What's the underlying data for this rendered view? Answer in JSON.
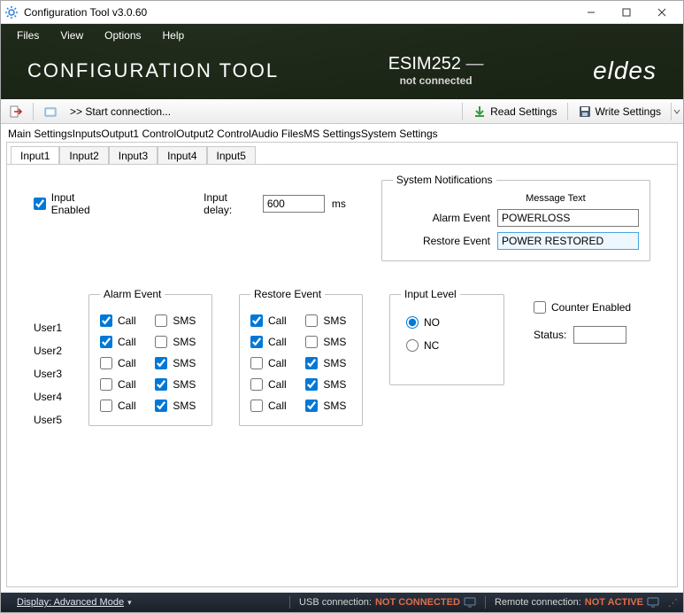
{
  "window": {
    "title": "Configuration Tool v3.0.60"
  },
  "menubar": [
    "Files",
    "View",
    "Options",
    "Help"
  ],
  "header": {
    "app_title": "CONFIGURATION TOOL",
    "device_name": "ESIM252",
    "device_status": "not connected",
    "brand": "eldes"
  },
  "toolbar": {
    "start_connection": ">>  Start connection...",
    "read_settings": "Read Settings",
    "write_settings": "Write Settings"
  },
  "main_tabs": [
    "Main Settings",
    "Inputs",
    "Output1 Control",
    "Output2 Control",
    "Audio Files",
    "MS Settings",
    "System Settings"
  ],
  "main_tabs_active_index": 1,
  "sub_tabs": [
    "Input1",
    "Input2",
    "Input3",
    "Input4",
    "Input5"
  ],
  "sub_tabs_active_index": 0,
  "input_panel": {
    "enabled_label": "Input Enabled",
    "enabled_checked": true,
    "delay_label": "Input delay:",
    "delay_value": "600",
    "delay_unit": "ms"
  },
  "system_notifications": {
    "legend": "System Notifications",
    "msg_header": "Message Text",
    "alarm_label": "Alarm Event",
    "alarm_value": "POWERLOSS",
    "restore_label": "Restore Event",
    "restore_value": "POWER RESTORED"
  },
  "events": {
    "alarm_legend": "Alarm Event",
    "restore_legend": "Restore Event",
    "call_label": "Call",
    "sms_label": "SMS",
    "users": [
      {
        "name": "User1",
        "alarm_call": true,
        "alarm_sms": false,
        "restore_call": true,
        "restore_sms": false
      },
      {
        "name": "User2",
        "alarm_call": true,
        "alarm_sms": false,
        "restore_call": true,
        "restore_sms": false
      },
      {
        "name": "User3",
        "alarm_call": false,
        "alarm_sms": true,
        "restore_call": false,
        "restore_sms": true
      },
      {
        "name": "User4",
        "alarm_call": false,
        "alarm_sms": true,
        "restore_call": false,
        "restore_sms": true
      },
      {
        "name": "User5",
        "alarm_call": false,
        "alarm_sms": true,
        "restore_call": false,
        "restore_sms": true
      }
    ]
  },
  "input_level": {
    "legend": "Input Level",
    "no_label": "NO",
    "nc_label": "NC",
    "selected": "NO"
  },
  "counter": {
    "enabled_label": "Counter Enabled",
    "enabled_checked": false,
    "status_label": "Status:",
    "status_value": ""
  },
  "statusbar": {
    "display_label": "Display: Advanced Mode",
    "usb_label": "USB connection:",
    "usb_value": "NOT CONNECTED",
    "remote_label": "Remote connection:",
    "remote_value": "NOT ACTIVE"
  },
  "colors": {
    "accent": "#0078d7",
    "status_red": "#e06c4a",
    "header_bg": "#263022"
  }
}
